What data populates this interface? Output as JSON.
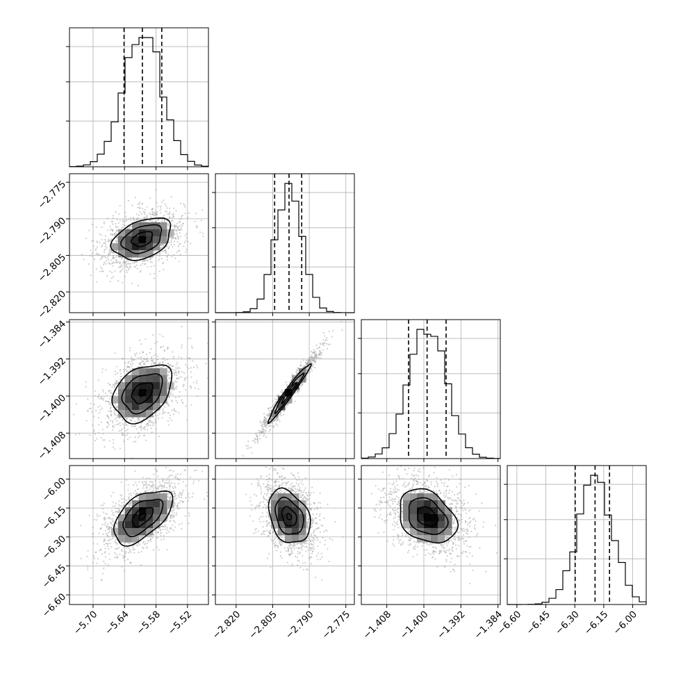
{
  "chart_data": {
    "type": "corner",
    "title": "",
    "grid": true,
    "params": [
      {
        "index": 0,
        "range": [
          -5.745,
          -5.48
        ],
        "ticks": [
          -5.7,
          -5.64,
          -5.58,
          -5.52
        ],
        "tick_labels": [
          "−5.70",
          "−5.64",
          "−5.58",
          "−5.52"
        ],
        "quantiles": [
          -5.641,
          -5.606,
          -5.569
        ],
        "median": -5.606,
        "sigma": 0.036
      },
      {
        "index": 1,
        "range": [
          -2.8285,
          -2.7715
        ],
        "ticks": [
          -2.82,
          -2.805,
          -2.79,
          -2.775
        ],
        "tick_labels": [
          "−2.820",
          "−2.805",
          "−2.790",
          "−2.775"
        ],
        "quantiles": [
          -2.8042,
          -2.7983,
          -2.7931
        ],
        "median": -2.7983,
        "sigma": 0.0055
      },
      {
        "index": 2,
        "range": [
          -1.4135,
          -1.3835
        ],
        "ticks": [
          -1.408,
          -1.4,
          -1.392,
          -1.384
        ],
        "tick_labels": [
          "−1.408",
          "−1.400",
          "−1.392",
          "−1.384"
        ],
        "quantiles": [
          -1.4033,
          -1.3993,
          -1.3952
        ],
        "median": -1.3993,
        "sigma": 0.004
      },
      {
        "index": 3,
        "range": [
          -6.65,
          -5.93
        ],
        "ticks": [
          -6.6,
          -6.45,
          -6.3,
          -6.15,
          -6.0
        ],
        "tick_labels": [
          "−6.60",
          "−6.45",
          "−6.30",
          "−6.15",
          "−6.00"
        ],
        "quantiles": [
          -6.298,
          -6.195,
          -6.12
        ],
        "median": -6.195,
        "sigma": 0.09
      }
    ],
    "correlations": [
      [
        1,
        0.35,
        0.35,
        0.55
      ],
      [
        0.35,
        1,
        0.97,
        -0.3
      ],
      [
        0.35,
        0.97,
        1,
        -0.3
      ],
      [
        0.55,
        -0.3,
        -0.3,
        1
      ]
    ]
  }
}
